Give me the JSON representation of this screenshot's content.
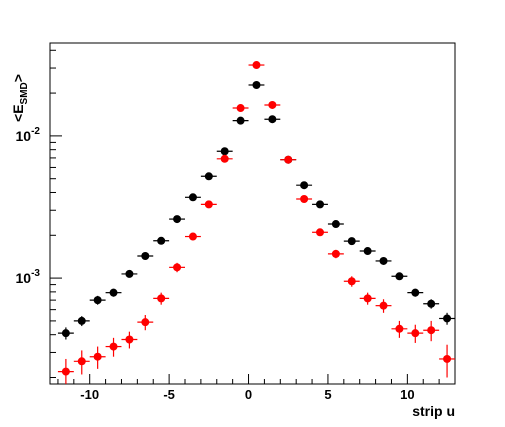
{
  "chart_data": {
    "type": "scatter",
    "title": "",
    "xlabel": "strip u",
    "ylabel_main": "<E",
    "ylabel_sub": "SMD",
    "ylabel_close": ">",
    "xlim": [
      -12.5,
      13.0
    ],
    "ylim": [
      0.00018,
      0.045
    ],
    "yscale": "log",
    "grid": false,
    "x_ticks": [
      {
        "value": -10,
        "label": "-10"
      },
      {
        "value": -5,
        "label": "-5"
      },
      {
        "value": 0,
        "label": "0"
      },
      {
        "value": 5,
        "label": "5"
      },
      {
        "value": 10,
        "label": "10"
      }
    ],
    "y_ticks": [
      {
        "value": 0.01,
        "base": "10",
        "exp": "-2"
      },
      {
        "value": 0.001,
        "base": "10",
        "exp": "-3"
      }
    ],
    "x_error": 0.5,
    "series": [
      {
        "color": "#000000",
        "points": [
          {
            "x": -11.5,
            "y": 0.00041,
            "err": 4e-05
          },
          {
            "x": -10.5,
            "y": 0.0005,
            "err": 4e-05
          },
          {
            "x": -9.5,
            "y": 0.0007,
            "err": 5e-05
          },
          {
            "x": -8.5,
            "y": 0.00079,
            "err": 5e-05
          },
          {
            "x": -7.5,
            "y": 0.00107,
            "err": 6e-05
          },
          {
            "x": -6.5,
            "y": 0.00143,
            "err": 7e-05
          },
          {
            "x": -5.5,
            "y": 0.00183,
            "err": 8e-05
          },
          {
            "x": -4.5,
            "y": 0.0026,
            "err": 9e-05
          },
          {
            "x": -3.5,
            "y": 0.0037,
            "err": 0.0001
          },
          {
            "x": -2.5,
            "y": 0.0052,
            "err": 0.00012
          },
          {
            "x": -1.5,
            "y": 0.0078,
            "err": 0.00014
          },
          {
            "x": -0.5,
            "y": 0.0128,
            "err": 0.0002
          },
          {
            "x": 0.5,
            "y": 0.0228,
            "err": 0.0003
          },
          {
            "x": 1.5,
            "y": 0.0131,
            "err": 0.0002
          },
          {
            "x": 2.5,
            "y": 0.0068,
            "err": 0.00013
          },
          {
            "x": 3.5,
            "y": 0.0045,
            "err": 0.00011
          },
          {
            "x": 4.5,
            "y": 0.0033,
            "err": 0.0001
          },
          {
            "x": 5.5,
            "y": 0.0024,
            "err": 9e-05
          },
          {
            "x": 6.5,
            "y": 0.00182,
            "err": 8e-05
          },
          {
            "x": 7.5,
            "y": 0.00155,
            "err": 7e-05
          },
          {
            "x": 8.5,
            "y": 0.00132,
            "err": 7e-05
          },
          {
            "x": 9.5,
            "y": 0.00103,
            "err": 6e-05
          },
          {
            "x": 10.5,
            "y": 0.00079,
            "err": 5e-05
          },
          {
            "x": 11.5,
            "y": 0.00066,
            "err": 5e-05
          },
          {
            "x": 12.5,
            "y": 0.00052,
            "err": 5e-05
          }
        ]
      },
      {
        "color": "#ff0000",
        "points": [
          {
            "x": -11.5,
            "y": 0.00022,
            "err": 5e-05
          },
          {
            "x": -10.5,
            "y": 0.00026,
            "err": 5e-05
          },
          {
            "x": -9.5,
            "y": 0.00028,
            "err": 5e-05
          },
          {
            "x": -8.5,
            "y": 0.00033,
            "err": 5e-05
          },
          {
            "x": -7.5,
            "y": 0.00037,
            "err": 5e-05
          },
          {
            "x": -6.5,
            "y": 0.00049,
            "err": 6e-05
          },
          {
            "x": -5.5,
            "y": 0.00072,
            "err": 7e-05
          },
          {
            "x": -4.5,
            "y": 0.00119,
            "err": 9e-05
          },
          {
            "x": -3.5,
            "y": 0.00196,
            "err": 0.00012
          },
          {
            "x": -2.5,
            "y": 0.0033,
            "err": 0.00015
          },
          {
            "x": -1.5,
            "y": 0.0069,
            "err": 0.00022
          },
          {
            "x": -0.5,
            "y": 0.0157,
            "err": 0.00035
          },
          {
            "x": 0.5,
            "y": 0.0315,
            "err": 0.0006
          },
          {
            "x": 1.5,
            "y": 0.0165,
            "err": 0.00035
          },
          {
            "x": 2.5,
            "y": 0.0068,
            "err": 0.00022
          },
          {
            "x": 3.5,
            "y": 0.0036,
            "err": 0.00015
          },
          {
            "x": 4.5,
            "y": 0.0021,
            "err": 0.00012
          },
          {
            "x": 5.5,
            "y": 0.00148,
            "err": 0.0001
          },
          {
            "x": 6.5,
            "y": 0.00095,
            "err": 8e-05
          },
          {
            "x": 7.5,
            "y": 0.00072,
            "err": 7e-05
          },
          {
            "x": 8.5,
            "y": 0.00064,
            "err": 7e-05
          },
          {
            "x": 9.5,
            "y": 0.00044,
            "err": 6e-05
          },
          {
            "x": 10.5,
            "y": 0.00041,
            "err": 6e-05
          },
          {
            "x": 11.5,
            "y": 0.00043,
            "err": 7e-05
          },
          {
            "x": 12.5,
            "y": 0.00027,
            "err": 7e-05
          }
        ]
      }
    ]
  }
}
